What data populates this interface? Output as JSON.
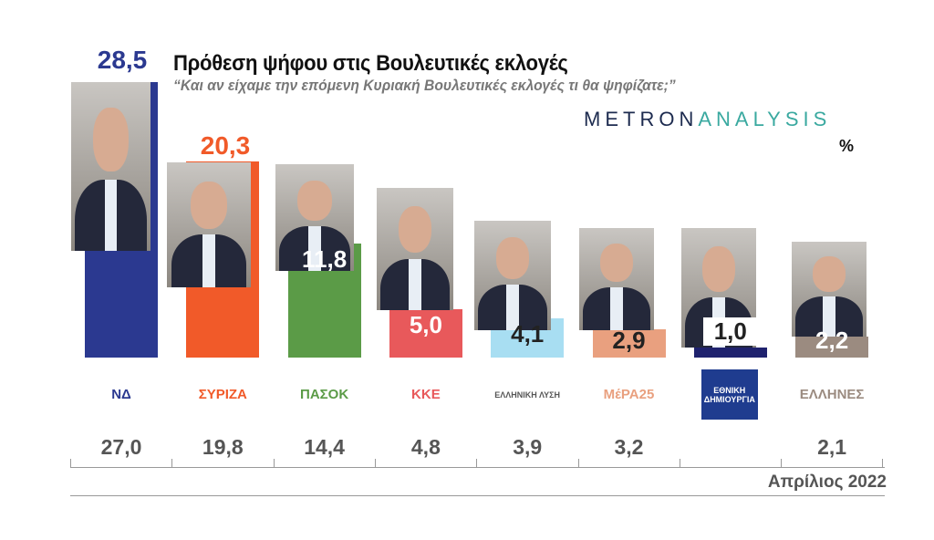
{
  "title": "Πρόθεση ψήφου στις Βουλευτικές εκλογές",
  "subtitle": "“Και αν είχαμε την επόμενη Κυριακή Βουλευτικές εκλογές τι θα ψηφίζατε;”",
  "brand": {
    "part1": "METRON",
    "part2": "ANALYSIS"
  },
  "unit": "%",
  "date": "Απρίλιος 2022",
  "chart_data": {
    "type": "bar",
    "categories": [
      "ΝΔ",
      "ΣΥΡΙΖΑ",
      "ΠΑΣΟΚ",
      "ΚΚΕ",
      "Ελληνική Λύση",
      "ΜέΡΑ25",
      "Εθνική Δημιουργία",
      "Έλληνες"
    ],
    "values": [
      28.5,
      20.3,
      11.8,
      5.0,
      4.1,
      2.9,
      1.0,
      2.2
    ],
    "value_labels": [
      "28,5",
      "20,3",
      "11,8",
      "5,0",
      "4,1",
      "2,9",
      "1,0",
      "2,2"
    ],
    "previous_labels": [
      "27,0",
      "19,8",
      "14,4",
      "4,8",
      "3,9",
      "3,2",
      "",
      "2,1"
    ],
    "logo_texts": [
      "ΝΔ",
      "ΣΥΡΙΖΑ",
      "ΠΑΣΟΚ",
      "ΚΚΕ",
      "ΕΛΛΗΝΙΚΗ ΛΥΣΗ",
      "ΜέΡΑ25",
      "ΕΘΝΙΚΗ ΔΗΜΙΟΥΡΓΙΑ",
      "ΕΛΛΗΝΕΣ"
    ],
    "colors": [
      "#2b3990",
      "#f15a29",
      "#5b9b47",
      "#e8595b",
      "#a8def2",
      "#e9a07f",
      "#1f226e",
      "#9b8b80"
    ],
    "label_colors": [
      "#2b3990",
      "#f15a29",
      "#ffffff",
      "#ffffff",
      "#222222",
      "#222222",
      "#222222",
      "#ffffff"
    ],
    "ylim": [
      0,
      30
    ],
    "grid": false
  }
}
